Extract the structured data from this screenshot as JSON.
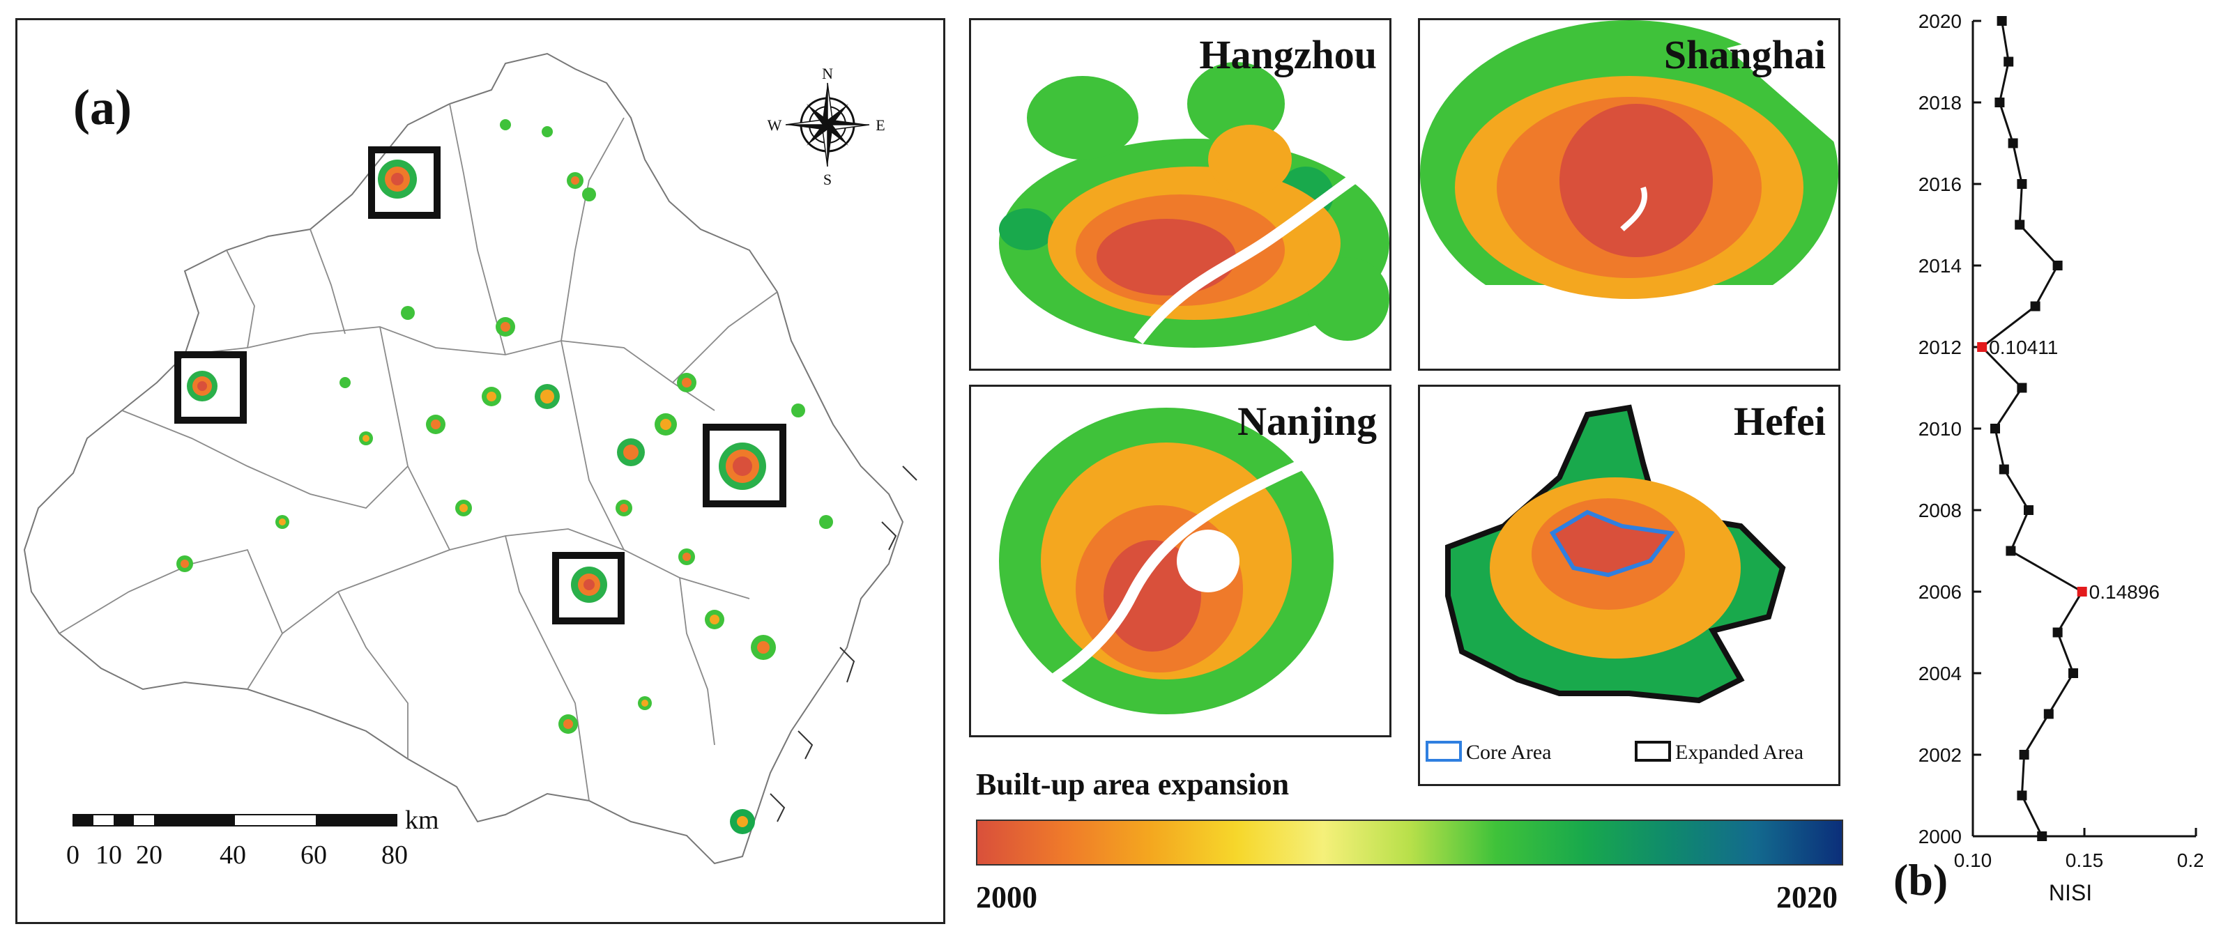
{
  "panel_a": {
    "label": "(a)",
    "compass": {
      "n": "N",
      "s": "S",
      "e": "E",
      "w": "W"
    },
    "scalebar": {
      "ticks": [
        "0",
        "10",
        "20",
        "40",
        "60",
        "80"
      ],
      "unit": "km"
    },
    "insets": [
      {
        "name": "Hangzhou"
      },
      {
        "name": "Shanghai"
      },
      {
        "name": "Nanjing"
      },
      {
        "name": "Hefei"
      }
    ],
    "inset_legend": {
      "core": "Core Area",
      "expanded": "Expanded Area"
    },
    "colorbar": {
      "title": "Built-up area expansion",
      "start": "2000",
      "end": "2020",
      "colors": [
        "#d9503b",
        "#ef7a2a",
        "#f4a71f",
        "#f6d72b",
        "#f5f07a",
        "#b8e04a",
        "#3fc23a",
        "#19a94c",
        "#0f8a6c",
        "#136a8e",
        "#0b2f7a"
      ]
    }
  },
  "panel_b": {
    "label": "(b)",
    "colors": {
      "line": "#111111",
      "highlight": "#e31a1c"
    },
    "chart_data": {
      "type": "line",
      "xlabel": "NISI",
      "ylabel": "",
      "xlim": [
        0.1,
        0.2
      ],
      "ylim": [
        2000,
        2020
      ],
      "xticks": [
        "0.10",
        "0.15",
        "0.20"
      ],
      "yticks": [
        "2000",
        "2002",
        "2004",
        "2006",
        "2008",
        "2010",
        "2012",
        "2014",
        "2016",
        "2018",
        "2020"
      ],
      "points": [
        {
          "year": 2000,
          "nisi": 0.131
        },
        {
          "year": 2001,
          "nisi": 0.122
        },
        {
          "year": 2002,
          "nisi": 0.123
        },
        {
          "year": 2003,
          "nisi": 0.134
        },
        {
          "year": 2004,
          "nisi": 0.145
        },
        {
          "year": 2005,
          "nisi": 0.138
        },
        {
          "year": 2006,
          "nisi": 0.14896
        },
        {
          "year": 2007,
          "nisi": 0.117
        },
        {
          "year": 2008,
          "nisi": 0.125
        },
        {
          "year": 2009,
          "nisi": 0.114
        },
        {
          "year": 2010,
          "nisi": 0.11
        },
        {
          "year": 2011,
          "nisi": 0.122
        },
        {
          "year": 2012,
          "nisi": 0.10411
        },
        {
          "year": 2013,
          "nisi": 0.128
        },
        {
          "year": 2014,
          "nisi": 0.138
        },
        {
          "year": 2015,
          "nisi": 0.121
        },
        {
          "year": 2016,
          "nisi": 0.122
        },
        {
          "year": 2017,
          "nisi": 0.118
        },
        {
          "year": 2018,
          "nisi": 0.112
        },
        {
          "year": 2019,
          "nisi": 0.116
        },
        {
          "year": 2020,
          "nisi": 0.113
        }
      ],
      "annotations": [
        {
          "year": 2012,
          "text": "0.10411"
        },
        {
          "year": 2006,
          "text": "0.14896"
        }
      ]
    }
  }
}
